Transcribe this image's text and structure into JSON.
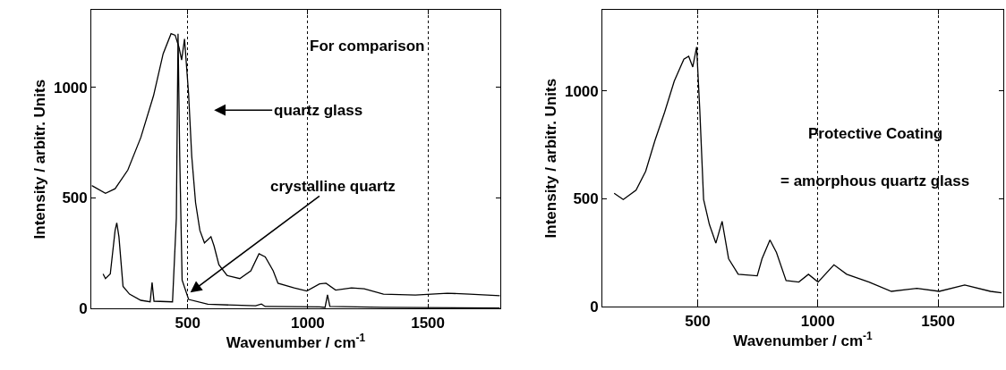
{
  "chart_data": [
    {
      "type": "line",
      "xlabel": "Wavenumber / cm$^{-1}$",
      "ylabel": "Intensity / arbitr. Units",
      "xlim": [
        100,
        1800
      ],
      "ylim": [
        0,
        1350
      ],
      "xticks": [
        500,
        1000,
        1500
      ],
      "yticks": [
        0,
        500,
        1000
      ],
      "grid": "x",
      "annotations": [
        "For comparison",
        "quartz glass",
        {
          "text": "crystalline quartz",
          "x": 511,
          "y": 73
        }
      ],
      "series": [
        {
          "color": "#000000",
          "x": [
            101,
            158,
            198,
            251,
            305,
            358,
            398,
            431,
            448,
            464,
            475,
            487,
            504,
            517,
            533,
            551,
            570,
            597,
            610,
            630,
            664,
            717,
            763,
            797,
            823,
            856,
            876,
            943,
            996,
            1049,
            1076,
            1116,
            1182,
            1235,
            1315,
            1448,
            1581,
            1674,
            1800
          ],
          "values": [
            556,
            521,
            542,
            626,
            773,
            962,
            1151,
            1242,
            1235,
            1180,
            1123,
            1218,
            969,
            689,
            479,
            353,
            297,
            325,
            283,
            199,
            150,
            136,
            171,
            248,
            234,
            171,
            115,
            94,
            80,
            112,
            115,
            84,
            94,
            90,
            66,
            62,
            70,
            66,
            59
          ]
        },
        {
          "color": "#000000",
          "x": [
            148,
            158,
            178,
            198,
            205,
            214,
            231,
            258,
            305,
            344,
            352,
            360,
            437,
            453,
            460,
            467,
            477,
            504,
            584,
            783,
            807,
            823,
            1049,
            1072,
            1082,
            1092,
            1315,
            1800
          ],
          "values": [
            157,
            136,
            157,
            353,
            388,
            325,
            101,
            66,
            38,
            31,
            118,
            34,
            31,
            409,
            1242,
            689,
            129,
            42,
            20,
            13,
            21,
            10,
            8,
            6,
            63,
            10,
            6,
            3
          ]
        }
      ]
    },
    {
      "type": "line",
      "xlabel": "Wavenumber / cm$^{-1}$",
      "ylabel": "Intensity / arbitr. Units",
      "xlim": [
        105,
        1770
      ],
      "ylim": [
        0,
        1375
      ],
      "xticks": [
        500,
        1000,
        1500
      ],
      "yticks": [
        0,
        500,
        1000
      ],
      "grid": "x",
      "annotations": [
        "Protective Coating",
        "= amorphous quartz glass"
      ],
      "series": [
        {
          "color": "#000000",
          "x": [
            153,
            191,
            244,
            284,
            323,
            363,
            403,
            443,
            463,
            480,
            496,
            509,
            525,
            549,
            576,
            602,
            629,
            669,
            748,
            768,
            801,
            828,
            868,
            921,
            961,
            1001,
            1067,
            1120,
            1213,
            1306,
            1412,
            1505,
            1611,
            1718,
            1764
          ],
          "values": [
            526,
            497,
            540,
            627,
            771,
            901,
            1045,
            1146,
            1160,
            1110,
            1203,
            915,
            497,
            382,
            295,
            396,
            223,
            151,
            144,
            223,
            310,
            252,
            122,
            115,
            151,
            115,
            195,
            151,
            115,
            72,
            86,
            72,
            101,
            72,
            65
          ]
        }
      ]
    }
  ]
}
